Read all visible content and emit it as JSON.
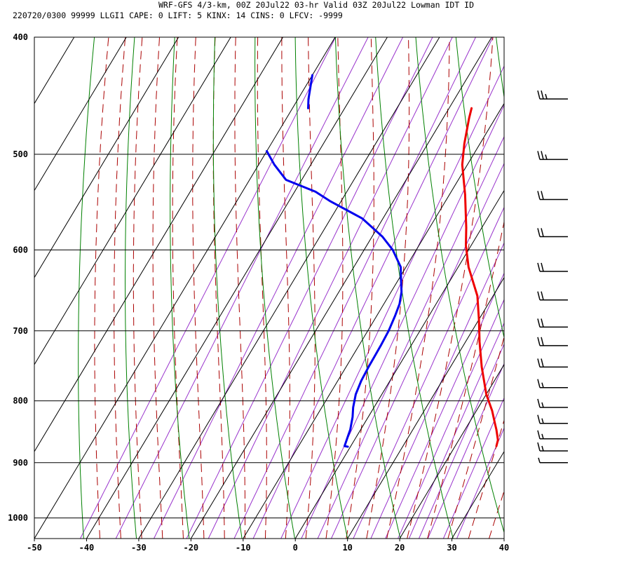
{
  "header": {
    "line1": "WRF-GFS 4/3-km, 00Z 20Jul22 03-hr Valid 03Z 20Jul22 Lowman IDT ID",
    "line2": "220720/0300 99999  LLGI1   CAPE:     0 LIFT:     5 KINX:    14 CINS:     0 LFCV: -9999"
  },
  "chart_data": {
    "type": "line",
    "title": "WRF-GFS 4/3-km, 00Z 20Jul22 03-hr Valid 03Z 20Jul22 Lowman IDT ID",
    "xlabel": "",
    "ylabel": "",
    "x_ticks": [
      -50,
      -40,
      -30,
      -20,
      -10,
      0,
      10,
      20,
      30,
      40
    ],
    "y_ticks": [
      400,
      500,
      600,
      700,
      800,
      900,
      1000
    ],
    "xlim": [
      -50,
      40
    ],
    "ylim": [
      1040,
      400
    ],
    "y_scale": "log pressure",
    "grid": true,
    "colors": {
      "temperature": "#ee0000",
      "dewpoint": "#0000ee",
      "dry_adiabats": "#008000",
      "moist_adiabats": "#aa0000",
      "mixing_ratio": "#9933cc",
      "grid": "#000000"
    },
    "series": [
      {
        "role": "temperature",
        "points": [
          [
            27.9,
            872
          ],
          [
            27.5,
            862
          ],
          [
            26,
            845
          ],
          [
            25,
            835
          ],
          [
            23,
            815
          ],
          [
            20,
            790
          ],
          [
            16,
            750
          ],
          [
            12.7,
            715
          ],
          [
            10,
            685
          ],
          [
            7,
            655
          ],
          [
            2,
            620
          ],
          [
            -1,
            595
          ],
          [
            -3,
            575
          ],
          [
            -7,
            540
          ],
          [
            -11,
            510
          ],
          [
            -13,
            490
          ],
          [
            -15,
            467
          ],
          [
            -15.7,
            458
          ]
        ]
      },
      {
        "role": "dewpoint",
        "points": [
          [
            -0.5,
            873
          ],
          [
            -1.2,
            872
          ],
          [
            -1.7,
            855
          ],
          [
            -2,
            845
          ],
          [
            -3,
            825
          ],
          [
            -4,
            810
          ],
          [
            -5,
            790
          ],
          [
            -5.5,
            770
          ],
          [
            -5.7,
            750
          ],
          [
            -5.8,
            720
          ],
          [
            -6,
            700
          ],
          [
            -6.5,
            680
          ],
          [
            -7,
            665
          ],
          [
            -8,
            650
          ],
          [
            -9.5,
            635
          ],
          [
            -11,
            620
          ],
          [
            -14.5,
            600
          ],
          [
            -18,
            585
          ],
          [
            -24,
            565
          ],
          [
            -32,
            547
          ],
          [
            -36,
            537
          ],
          [
            -43,
            525
          ],
          [
            -47,
            510
          ],
          [
            -50,
            497
          ]
        ]
      },
      {
        "role": "dewpoint",
        "points": [
          [
            -47,
            458
          ],
          [
            -48,
            450
          ],
          [
            -50,
            430
          ]
        ]
      }
    ],
    "wind_barbs": [
      {
        "pressure": 450,
        "speed_kt": 25
      },
      {
        "pressure": 505,
        "speed_kt": 25
      },
      {
        "pressure": 545,
        "speed_kt": 20
      },
      {
        "pressure": 585,
        "speed_kt": 20
      },
      {
        "pressure": 625,
        "speed_kt": 20
      },
      {
        "pressure": 660,
        "speed_kt": 20
      },
      {
        "pressure": 695,
        "speed_kt": 20
      },
      {
        "pressure": 720,
        "speed_kt": 20
      },
      {
        "pressure": 750,
        "speed_kt": 20
      },
      {
        "pressure": 780,
        "speed_kt": 15
      },
      {
        "pressure": 810,
        "speed_kt": 15
      },
      {
        "pressure": 835,
        "speed_kt": 15
      },
      {
        "pressure": 860,
        "speed_kt": 15
      },
      {
        "pressure": 880,
        "speed_kt": 15
      },
      {
        "pressure": 900,
        "speed_kt": 5
      }
    ]
  }
}
